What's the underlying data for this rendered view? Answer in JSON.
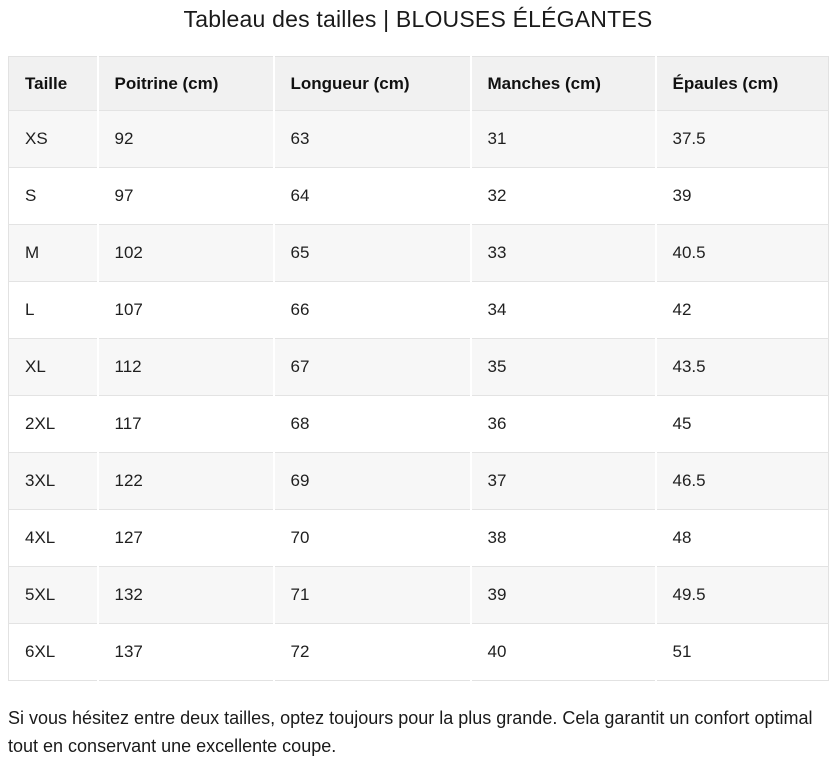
{
  "title": "Tableau des tailles | BLOUSES ÉLÉGANTES",
  "table": {
    "headers": [
      "Taille",
      "Poitrine (cm)",
      "Longueur (cm)",
      "Manches (cm)",
      "Épaules (cm)"
    ],
    "rows": [
      [
        "XS",
        "92",
        "63",
        "31",
        "37.5"
      ],
      [
        "S",
        "97",
        "64",
        "32",
        "39"
      ],
      [
        "M",
        "102",
        "65",
        "33",
        "40.5"
      ],
      [
        "L",
        "107",
        "66",
        "34",
        "42"
      ],
      [
        "XL",
        "112",
        "67",
        "35",
        "43.5"
      ],
      [
        "2XL",
        "117",
        "68",
        "36",
        "45"
      ],
      [
        "3XL",
        "122",
        "69",
        "37",
        "46.5"
      ],
      [
        "4XL",
        "127",
        "70",
        "38",
        "48"
      ],
      [
        "5XL",
        "132",
        "71",
        "39",
        "49.5"
      ],
      [
        "6XL",
        "137",
        "72",
        "40",
        "51"
      ]
    ]
  },
  "footer_note": "Si vous hésitez entre deux tailles, optez toujours pour la plus grande. Cela garantit un confort optimal tout en conservant une excellente coupe.",
  "colors": {
    "header_bg": "#f1f1f1",
    "stripe_row_bg": "#f7f7f7",
    "plain_row_bg": "#ffffff",
    "divider": "#e3e3e3",
    "text": "#1a1a1a"
  }
}
